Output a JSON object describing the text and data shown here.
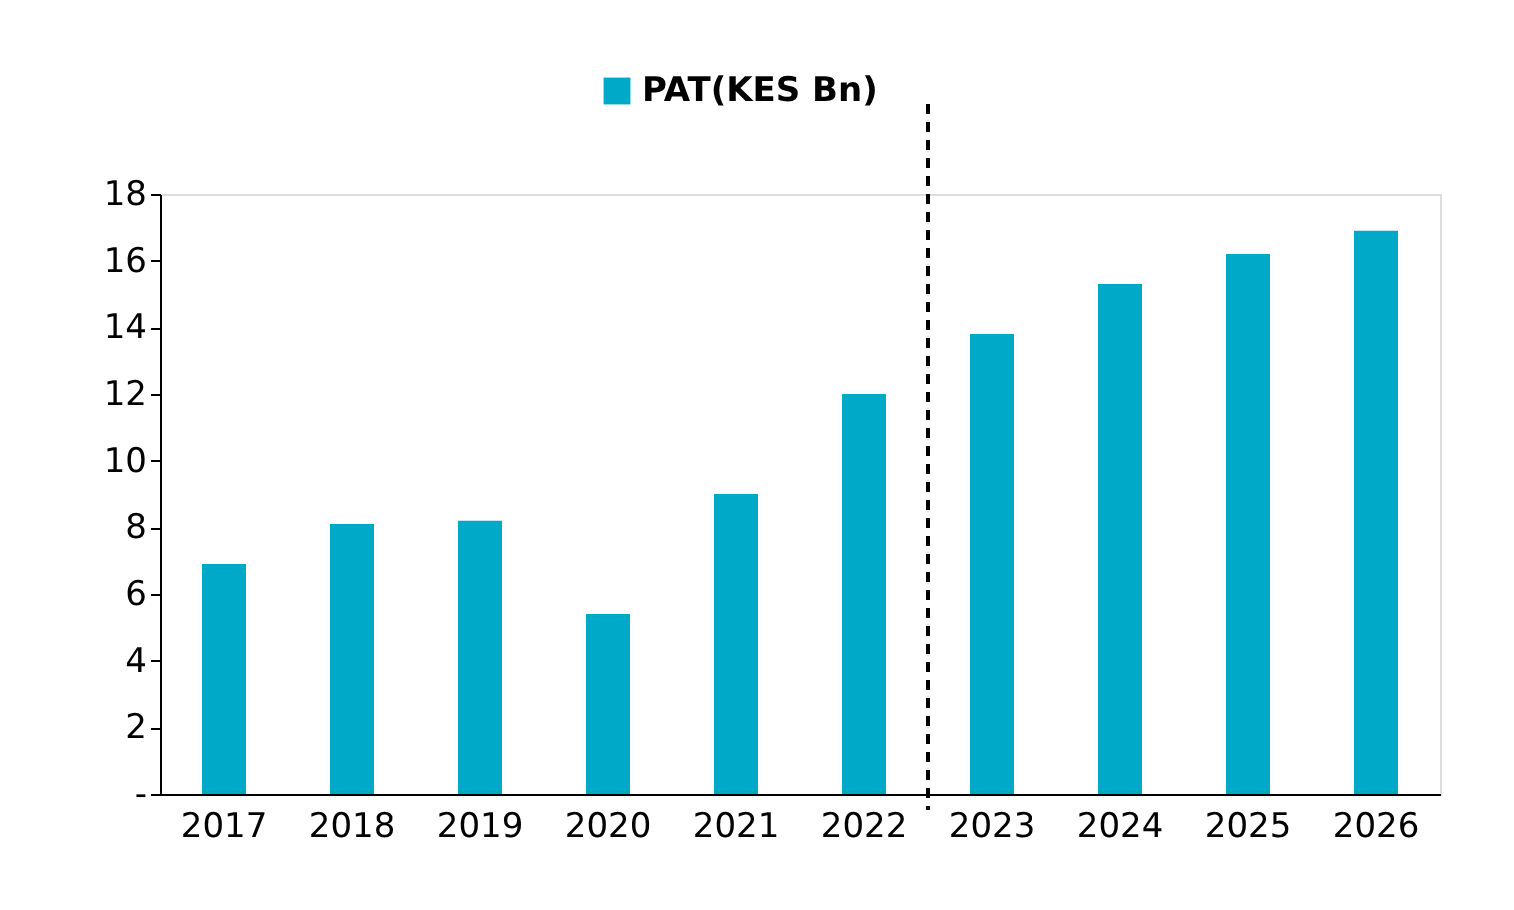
{
  "chart_data": {
    "type": "bar",
    "categories": [
      "2017",
      "2018",
      "2019",
      "2020",
      "2021",
      "2022",
      "2023",
      "2024",
      "2025",
      "2026"
    ],
    "series": [
      {
        "name": "PAT(KES Bn)",
        "color": "#00a9c7",
        "values": [
          6.9,
          8.1,
          8.2,
          5.4,
          9.0,
          12.0,
          13.8,
          15.3,
          16.2,
          16.9
        ]
      }
    ],
    "ylim": [
      0,
      18
    ],
    "yticks": [
      {
        "value": 0,
        "label": "-"
      },
      2,
      4,
      6,
      8,
      10,
      12,
      14,
      16,
      18
    ],
    "legend": "top",
    "grid": false
  }
}
